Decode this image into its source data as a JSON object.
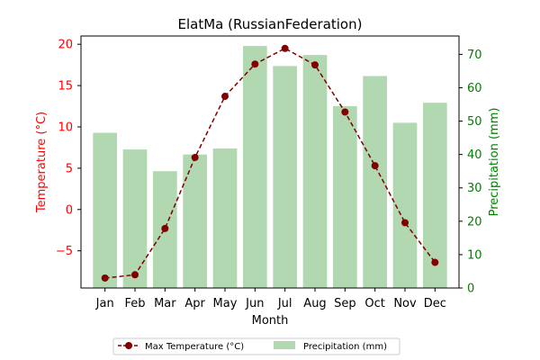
{
  "chart_data": {
    "type": "bar+line",
    "title": "ElatMa (RussianFederation)",
    "xlabel": "Month",
    "ylabel_left": "Temperature (°C)",
    "ylabel_right": "Precipitation (mm)",
    "categories": [
      "Jan",
      "Feb",
      "Mar",
      "Apr",
      "May",
      "Jun",
      "Jul",
      "Aug",
      "Sep",
      "Oct",
      "Nov",
      "Dec"
    ],
    "ylim_left": [
      -9.5,
      21
    ],
    "ylim_right": [
      0,
      75.5
    ],
    "yticks_left": [
      -5,
      0,
      5,
      10,
      15,
      20
    ],
    "yticks_right": [
      0,
      10,
      20,
      30,
      40,
      50,
      60,
      70
    ],
    "series": [
      {
        "name": "Max Temperature (°C)",
        "kind": "line",
        "axis": "left",
        "color": "#800000",
        "values": [
          -8.3,
          -7.9,
          -2.3,
          6.3,
          13.7,
          17.6,
          19.5,
          17.5,
          11.8,
          5.3,
          -1.6,
          -6.4
        ]
      },
      {
        "name": "Precipitation (mm)",
        "kind": "bar",
        "axis": "right",
        "color": "#b1d8b1",
        "values": [
          46.5,
          41.5,
          35.0,
          40.0,
          41.8,
          72.5,
          66.5,
          69.8,
          54.5,
          63.5,
          49.5,
          55.5
        ]
      }
    ],
    "legend": {
      "placement": "bottom-center"
    },
    "grid": false
  }
}
